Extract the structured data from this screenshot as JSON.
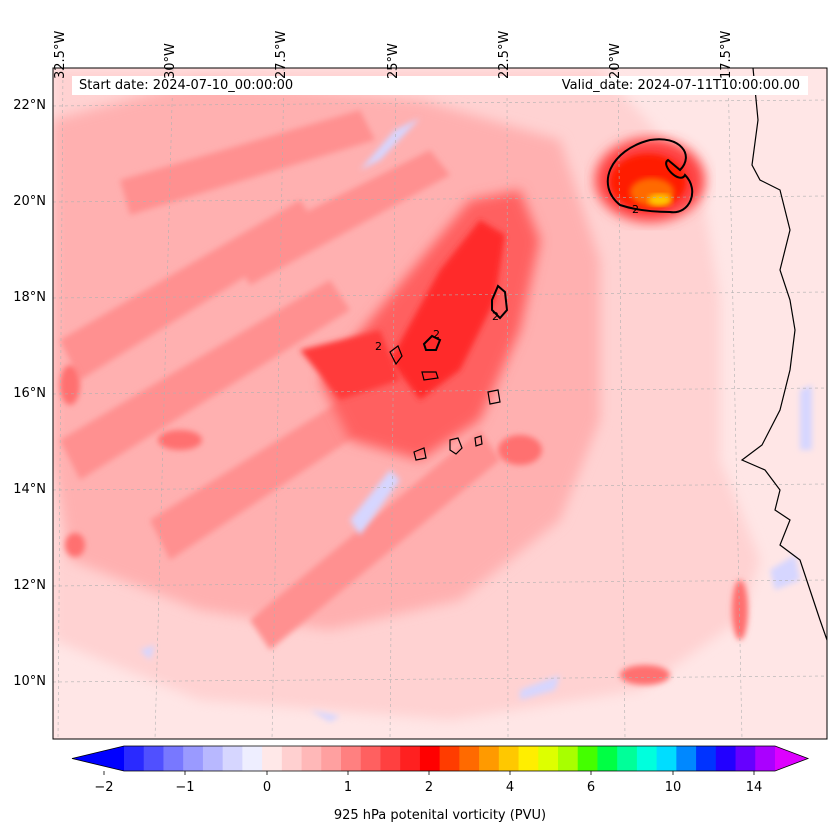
{
  "info": {
    "start_date": "Start date: 2024-07-10_00:00:00",
    "valid_date": "Valid_date: 2024-07-11T10:00:00.00"
  },
  "lon_labels": [
    "32.5°W",
    "30°W",
    "27.5°W",
    "25°W",
    "22.5°W",
    "20°W",
    "17.5°W"
  ],
  "lat_labels": [
    "22°N",
    "20°N",
    "18°N",
    "16°N",
    "14°N",
    "12°N",
    "10°N"
  ],
  "contour_label": "2",
  "colorbar": {
    "label": "925 hPa potenital vorticity (PVU)",
    "ticks": [
      "−2",
      "−1",
      "0",
      "1",
      "2",
      "4",
      "6",
      "10",
      "14"
    ],
    "colors": [
      "#0000ff",
      "#2a2aff",
      "#5050ff",
      "#7878ff",
      "#9a9aff",
      "#b8b8ff",
      "#d6d6ff",
      "#eeeeff",
      "#ffe8e8",
      "#ffd0d0",
      "#ffb8b8",
      "#ffa0a0",
      "#ff8080",
      "#ff6060",
      "#ff4040",
      "#ff2020",
      "#ff0000",
      "#ff3c00",
      "#ff6a00",
      "#ff9a00",
      "#ffc800",
      "#ffee00",
      "#ddff00",
      "#a8ff00",
      "#44ff00",
      "#00ff44",
      "#00ff99",
      "#00ffdd",
      "#00ddff",
      "#0088ff",
      "#0033ff",
      "#2200ff",
      "#6600ff",
      "#aa00ff",
      "#dd00ff"
    ]
  }
}
